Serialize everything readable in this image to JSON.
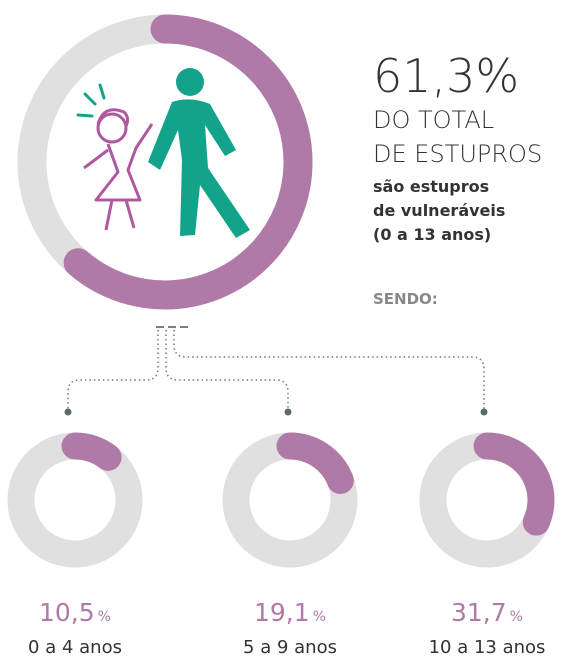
{
  "chart_data": {
    "type": "donut",
    "main": {
      "value": 61.3,
      "value_label": "61,3%",
      "color": "#b07aa8",
      "track_color": "#e0e0e0",
      "lines": [
        "DO TOTAL",
        "DE ESTUPROS"
      ],
      "description": [
        "são estupros",
        "de vulneráveis",
        "(0 a 13 anos)"
      ]
    },
    "breakdown_title": "SENDO:",
    "categories": [
      "0 a 4 anos",
      "5 a 9 anos",
      "10 a 13 anos"
    ],
    "values": [
      10.5,
      19.1,
      31.7
    ],
    "value_labels": [
      "10,5",
      "19,1",
      "31,7"
    ],
    "value_unit": "%",
    "color": "#b07aa8",
    "track_color": "#e0e0e0"
  }
}
